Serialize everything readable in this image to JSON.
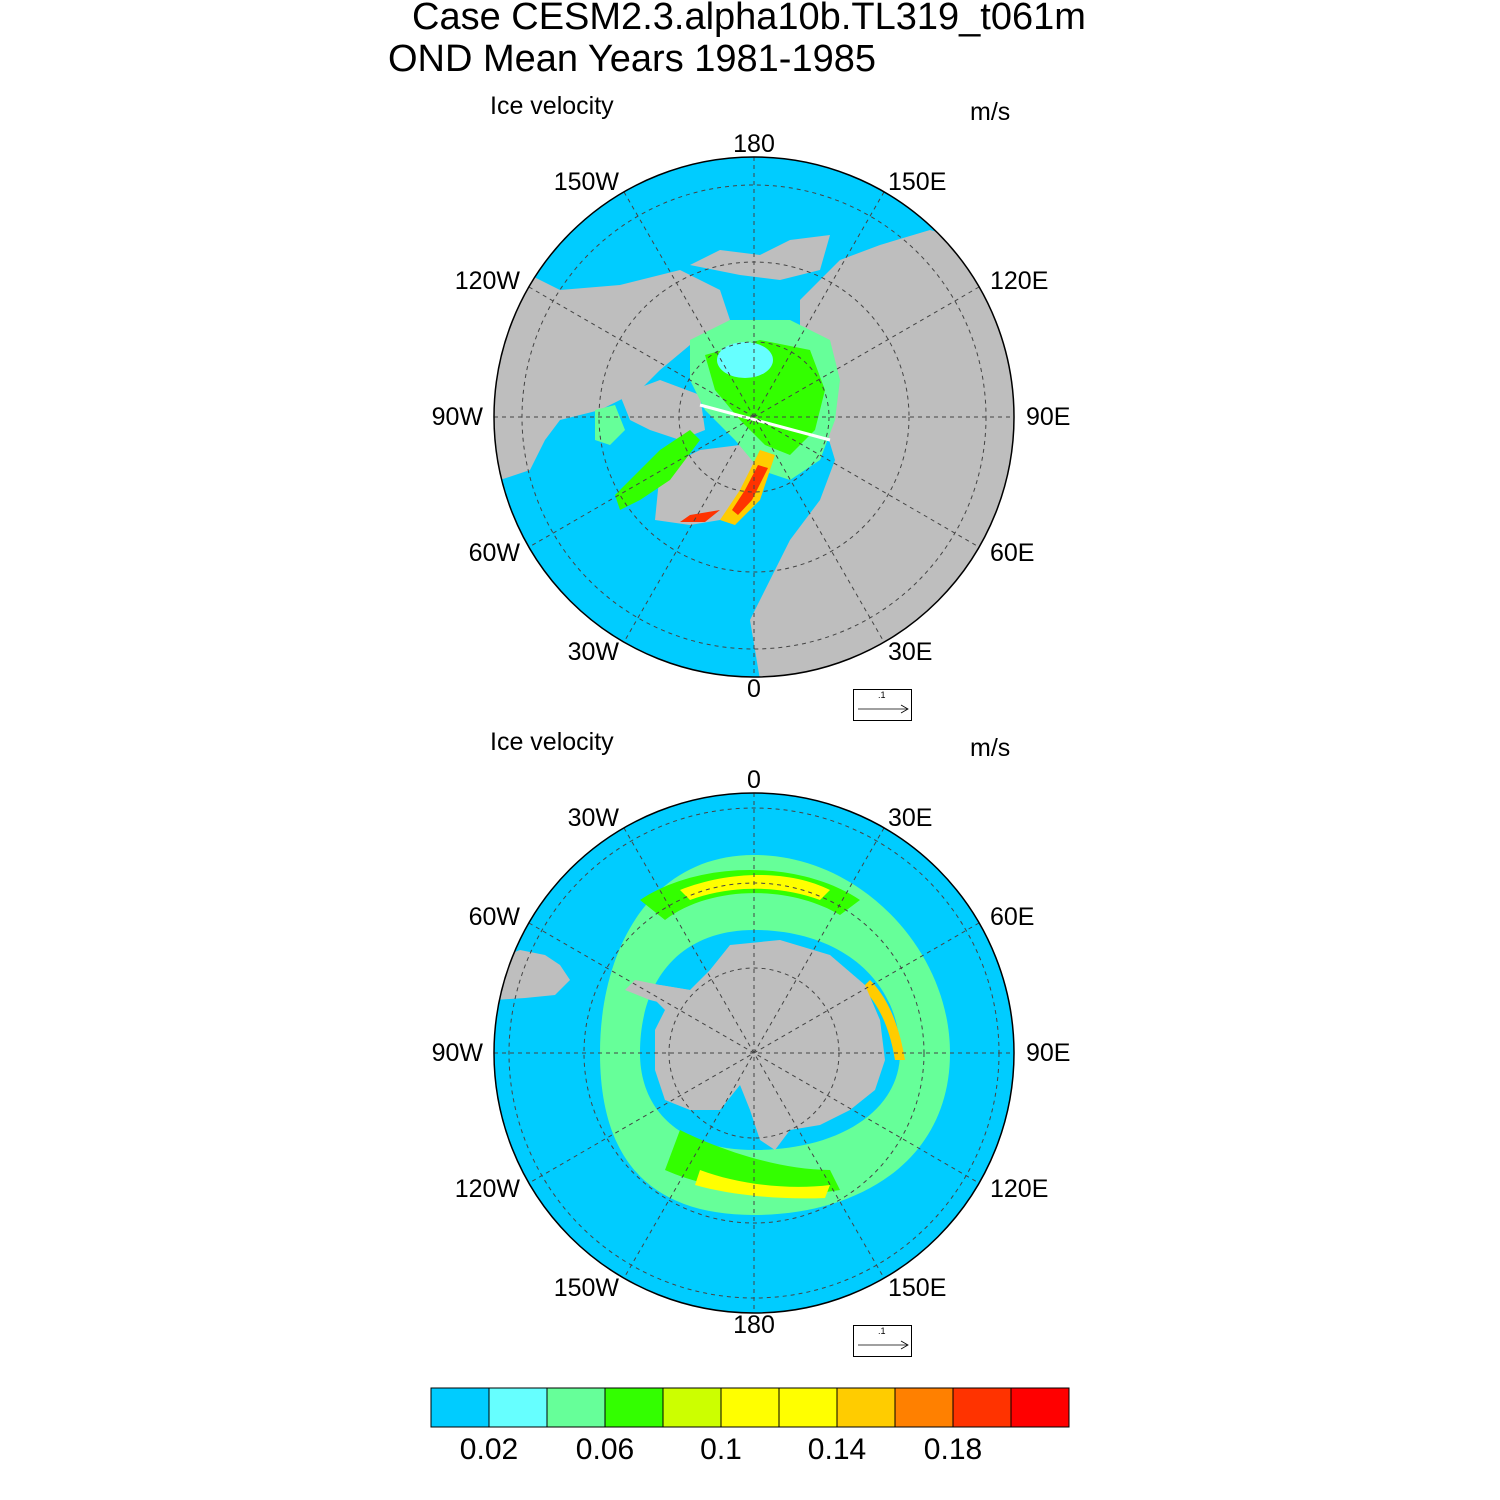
{
  "title": {
    "line1": "Case CESM2.3.alpha10b.TL319_t061m",
    "line2": "OND Mean   Years 1981-1985"
  },
  "north_panel": {
    "field_label": "Ice velocity",
    "units": "m/s",
    "lon_labels": {
      "top": "180",
      "top_left": "150W",
      "top_right": "150E",
      "upper_left": "120W",
      "upper_right": "120E",
      "left": "90W",
      "right": "90E",
      "lower_left": "60W",
      "lower_right": "60E",
      "bottom_left": "30W",
      "bottom_right": "30E",
      "bottom": "0"
    },
    "ref_vector": ".1"
  },
  "south_panel": {
    "field_label": "Ice velocity",
    "units": "m/s",
    "lon_labels": {
      "top": "0",
      "top_left": "30W",
      "top_right": "30E",
      "upper_left": "60W",
      "upper_right": "60E",
      "left": "90W",
      "right": "90E",
      "lower_left": "120W",
      "lower_right": "120E",
      "bottom_left": "150W",
      "bottom_right": "150E",
      "bottom": "180"
    },
    "ref_vector": ".1"
  },
  "colorbar": {
    "colors": [
      "#00CCFF",
      "#66FFFF",
      "#66FF99",
      "#33FF00",
      "#CCFF00",
      "#FFFF00",
      "#FFFF00",
      "#FFCC00",
      "#FF8000",
      "#FF3300",
      "#FF0000"
    ],
    "labels": [
      "0.02",
      "0.06",
      "0.1",
      "0.14",
      "0.18"
    ]
  },
  "colors": {
    "ocean": "#00CCFF",
    "land": "#BEBEBE",
    "grid": "#444444"
  }
}
